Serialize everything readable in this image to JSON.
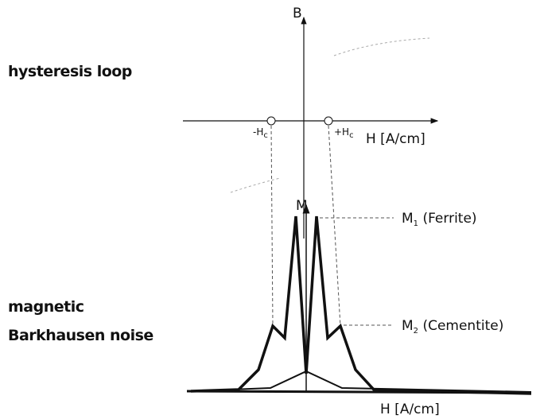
{
  "axis_top": {
    "label": "B",
    "x_label": "H [A/cm]"
  },
  "title_top": "hysteresis loop",
  "coercive": [
    {
      "text": "-H",
      "sub": "c"
    },
    {
      "text": "+H",
      "sub": "c"
    }
  ],
  "axis_bottom": {
    "label": "M",
    "x_label": "H [A/cm]"
  },
  "peaks": [
    {
      "text": "M",
      "sub": "1",
      "suffix": " (Ferrite)"
    },
    {
      "text": "M",
      "sub": "2",
      "suffix": " (Cementite)"
    }
  ],
  "title_bottom": [
    "magnetic",
    "Barkhausen noise"
  ]
}
